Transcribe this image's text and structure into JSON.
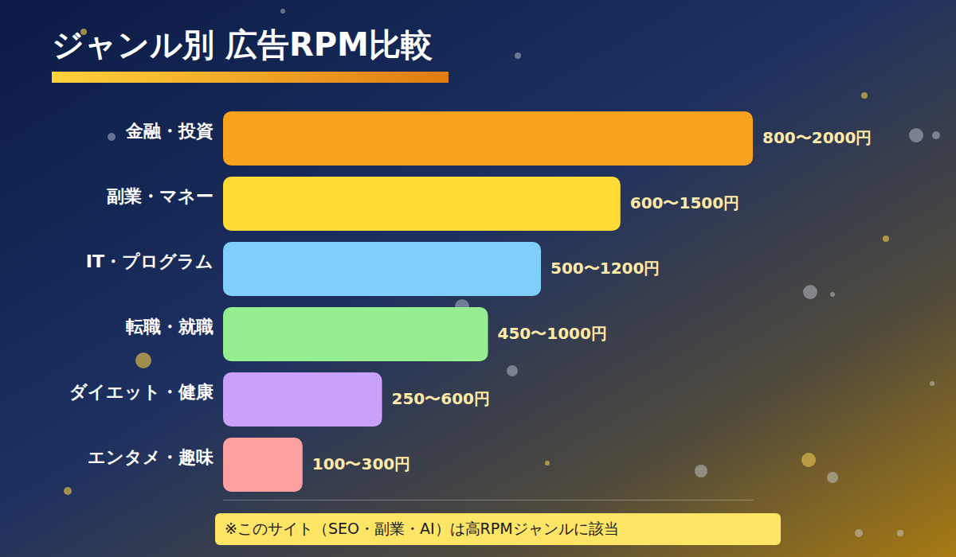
{
  "chart_data": {
    "type": "bar",
    "orientation": "horizontal",
    "title": "ジャンル別 広告RPM比較",
    "categories": [
      "金融・投資",
      "副業・マネー",
      "IT・プログラム",
      "転職・就職",
      "ダイエット・健康",
      "エンタメ・趣味"
    ],
    "values": [
      2000,
      1500,
      1200,
      1000,
      600,
      300
    ],
    "value_labels": [
      "800〜2000円",
      "600〜1500円",
      "500〜1200円",
      "450〜1000円",
      "250〜600円",
      "100〜300円"
    ],
    "colors": [
      "#F9A21E",
      "#FFDB35",
      "#7FCFFA",
      "#95EE8F",
      "#C9A0FA",
      "#FFA0A0"
    ],
    "xlim": [
      0,
      2000
    ],
    "xticks": [],
    "tick_labels": false,
    "grid": false,
    "data_labels": true,
    "annotation": "※このサイト（SEO・副業・AI）は高RPMジャンルに該当"
  }
}
